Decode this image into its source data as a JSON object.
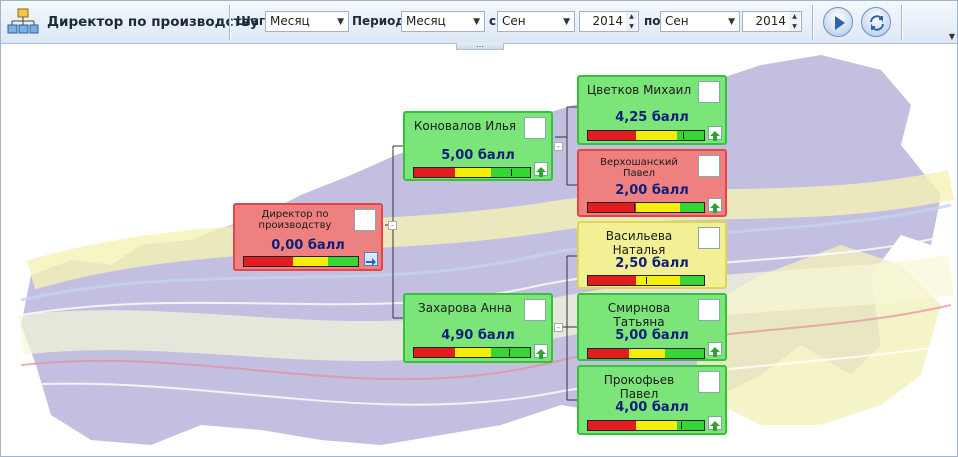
{
  "header": {
    "title": "Директор по производству",
    "step_label": "Шаг:",
    "step_value": "Месяц",
    "period_label": "Период:",
    "period_value": "Месяц",
    "from_label": "с",
    "from_month": "Сен",
    "from_year": "2014",
    "to_label": "по",
    "to_month": "Сен",
    "to_year": "2014",
    "more_indicator": "..."
  },
  "nodes": {
    "root": {
      "name": "Директор по производству",
      "score": "0,00 балл",
      "status": "red"
    },
    "konovalov": {
      "name": "Коновалов Илья",
      "score": "5,00 балл",
      "status": "green"
    },
    "zakharova": {
      "name": "Захарова Анна",
      "score": "4,90 балл",
      "status": "green"
    },
    "tsvetkov": {
      "name": "Цветков Михаил",
      "score": "4,25 балл",
      "status": "green"
    },
    "verkhoshansky": {
      "name": "Верхошанский Павел",
      "score": "2,00 балл",
      "status": "red"
    },
    "vasilyeva": {
      "name": "Васильева Наталья",
      "score": "2,50 балл",
      "status": "yellow"
    },
    "smirnova": {
      "name": "Смирнова Татьяна",
      "score": "5,00 балл",
      "status": "green"
    },
    "prokofyev": {
      "name": "Прокофьев Павел",
      "score": "4,00 балл",
      "status": "green"
    }
  },
  "colors": {
    "green_card": "#7ce57a",
    "red_card": "#ee8080",
    "yellow_card": "#f2ef94",
    "score_text": "#10207a"
  },
  "icons": [
    "app-org-chart-icon",
    "play-icon",
    "refresh-icon",
    "person-photo",
    "drill-down-arrow-icon",
    "up-arrow-icon"
  ]
}
